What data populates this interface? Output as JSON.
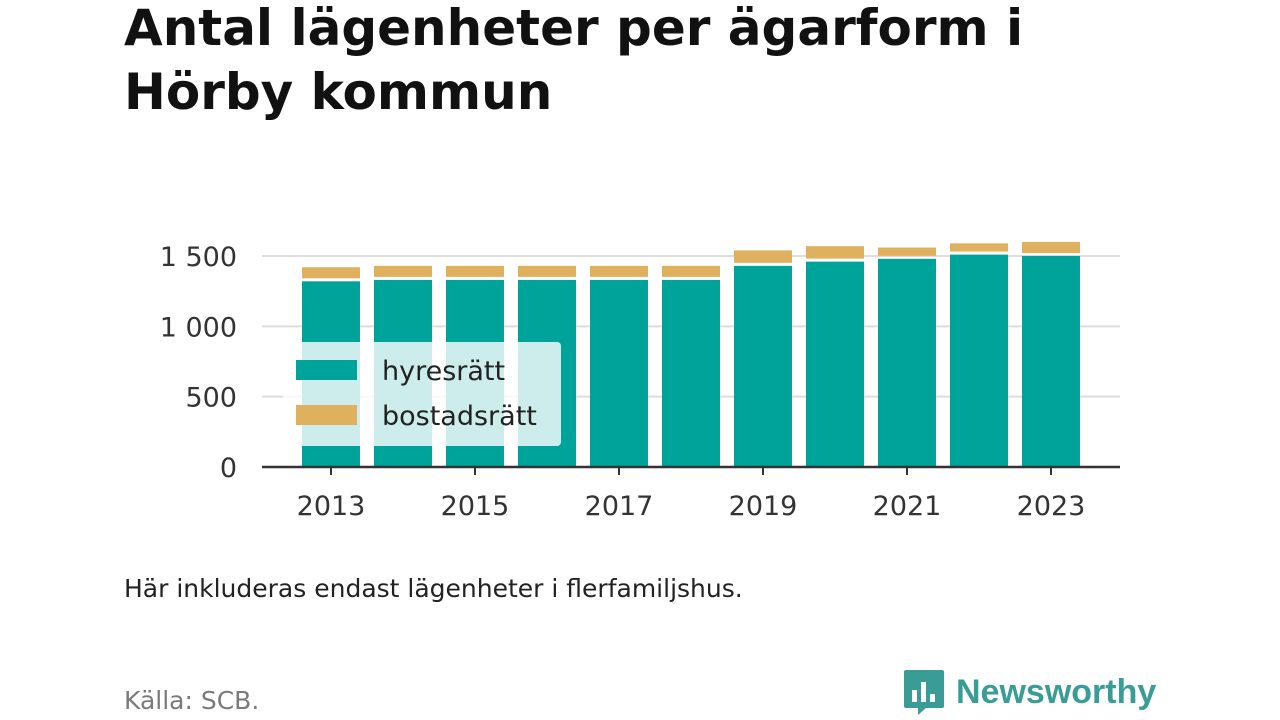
{
  "title": "Antal lägenheter per ägarform i Hörby kommun",
  "note": "Här inkluderas endast lägenheter i flerfamiljshus.",
  "source": "Källa: SCB.",
  "brand": {
    "name": "Newsworthy",
    "icon": "newsworthy-logo-icon",
    "color": "#3a9c96"
  },
  "colors": {
    "hyresratt": "#00a39a",
    "bostadsratt": "#dfb15e",
    "grid": "#dddddd",
    "axis": "#333333"
  },
  "chart_data": {
    "type": "bar",
    "stacked": true,
    "title": "Antal lägenheter per ägarform i Hörby kommun",
    "xlabel": "",
    "ylabel": "",
    "categories": [
      "2013",
      "2014",
      "2015",
      "2016",
      "2017",
      "2018",
      "2019",
      "2020",
      "2021",
      "2022",
      "2023"
    ],
    "x_tick_labels": [
      "2013",
      "2015",
      "2017",
      "2019",
      "2021",
      "2023"
    ],
    "y_ticks": [
      0,
      500,
      1000,
      1500
    ],
    "y_tick_labels": [
      "0",
      "500",
      "1 000",
      "1 500"
    ],
    "ylim": [
      0,
      1650
    ],
    "grid": true,
    "legend_position": "left",
    "series": [
      {
        "name": "hyresrätt",
        "values": [
          1320,
          1330,
          1330,
          1330,
          1330,
          1330,
          1430,
          1460,
          1480,
          1510,
          1500
        ]
      },
      {
        "name": "bostadsrätt",
        "values": [
          100,
          100,
          100,
          100,
          100,
          100,
          110,
          110,
          80,
          80,
          100
        ]
      }
    ]
  }
}
